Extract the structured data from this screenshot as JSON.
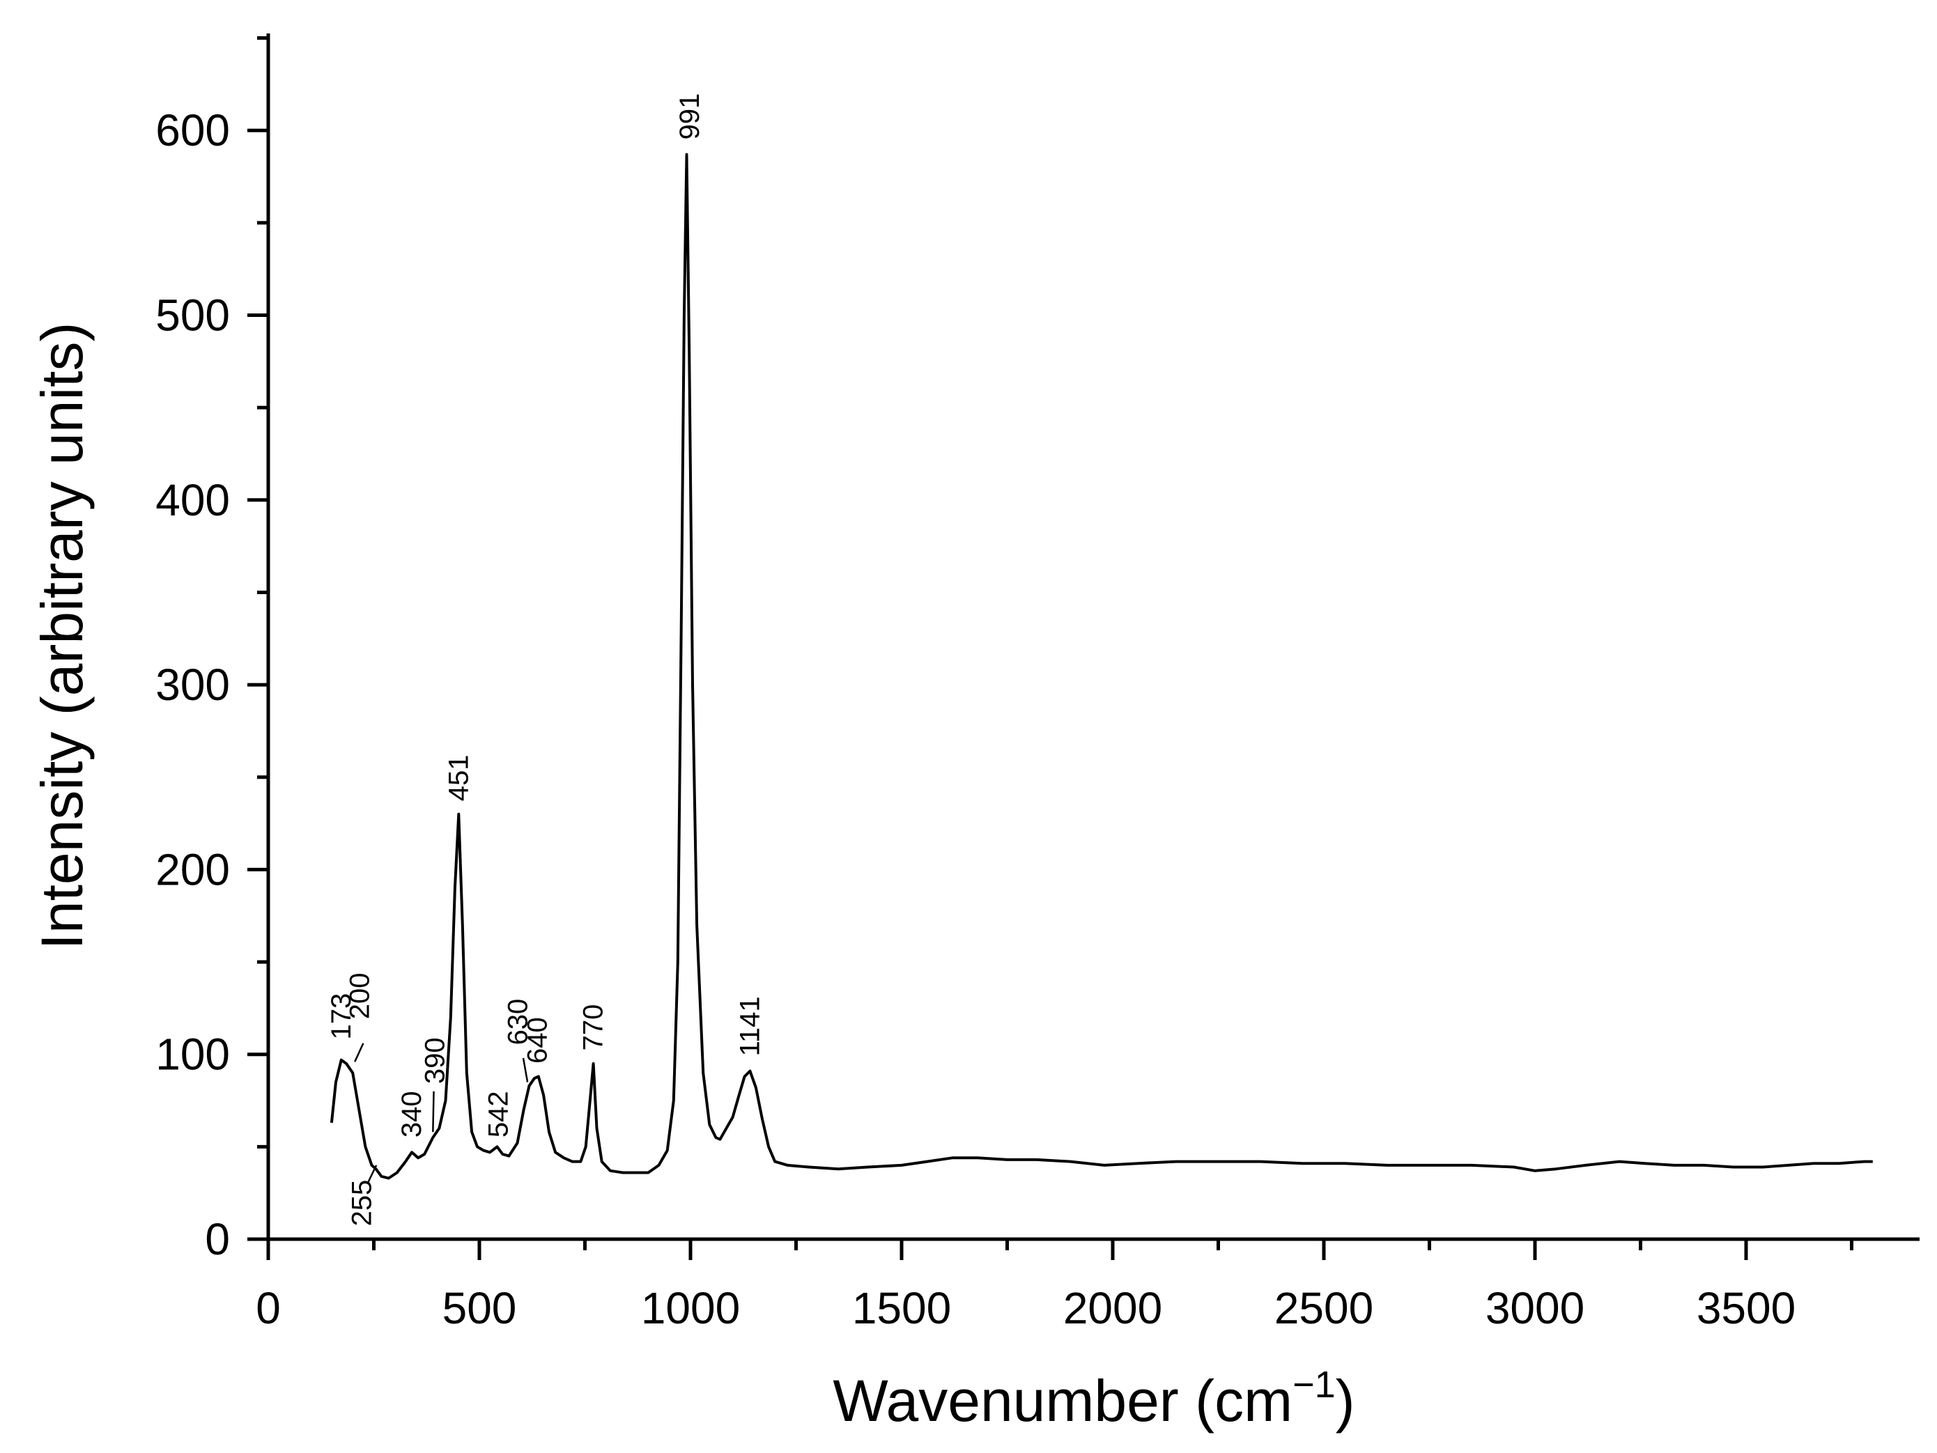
{
  "chart_data": {
    "type": "line",
    "title": "",
    "xlabel": "Wavenumber (cm",
    "xlabel_sup": "−1",
    "xlabel_close": ")",
    "ylabel": "Intensity (arbitrary units)",
    "xlim": [
      0,
      3900
    ],
    "ylim": [
      0,
      650
    ],
    "x_major_ticks": [
      0,
      500,
      1000,
      1500,
      2000,
      2500,
      3000,
      3500
    ],
    "x_minor_step": 250,
    "y_major_ticks": [
      0,
      100,
      200,
      300,
      400,
      500,
      600
    ],
    "y_minor_step": 50,
    "grid": false,
    "legend": "none",
    "line_color": "#000000",
    "series": [
      {
        "x": [
          150,
          160,
          173,
          185,
          200,
          215,
          230,
          245,
          255,
          268,
          285,
          305,
          325,
          340,
          355,
          370,
          390,
          405,
          420,
          432,
          442,
          451,
          460,
          470,
          482,
          495,
          510,
          525,
          542,
          555,
          570,
          590,
          605,
          618,
          630,
          640,
          652,
          665,
          680,
          700,
          720,
          740,
          752,
          762,
          770,
          778,
          790,
          810,
          840,
          870,
          900,
          925,
          945,
          960,
          970,
          978,
          985,
          991,
          997,
          1005,
          1015,
          1030,
          1045,
          1060,
          1070,
          1085,
          1100,
          1115,
          1128,
          1141,
          1155,
          1170,
          1185,
          1200,
          1230,
          1280,
          1350,
          1420,
          1500,
          1560,
          1620,
          1680,
          1750,
          1820,
          1900,
          1980,
          2060,
          2150,
          2250,
          2350,
          2450,
          2550,
          2650,
          2750,
          2850,
          2950,
          3000,
          3050,
          3120,
          3200,
          3260,
          3330,
          3400,
          3470,
          3540,
          3600,
          3660,
          3720,
          3780,
          3800
        ],
        "y": [
          63,
          85,
          97,
          95,
          90,
          70,
          50,
          40,
          38,
          34,
          33,
          36,
          42,
          47,
          44,
          46,
          55,
          60,
          75,
          120,
          190,
          230,
          170,
          90,
          58,
          50,
          48,
          47,
          50,
          46,
          45,
          52,
          70,
          83,
          87,
          88,
          78,
          58,
          47,
          44,
          42,
          42,
          50,
          75,
          95,
          60,
          42,
          37,
          36,
          36,
          36,
          40,
          48,
          75,
          150,
          330,
          500,
          587,
          480,
          300,
          170,
          90,
          62,
          55,
          54,
          60,
          66,
          78,
          88,
          91,
          82,
          65,
          50,
          42,
          40,
          39,
          38,
          39,
          40,
          42,
          44,
          44,
          43,
          43,
          42,
          40,
          41,
          42,
          42,
          42,
          41,
          41,
          40,
          40,
          40,
          39,
          37,
          38,
          40,
          42,
          41,
          40,
          40,
          39,
          39,
          40,
          41,
          41,
          42,
          42
        ]
      }
    ],
    "peak_labels": [
      "173",
      "200",
      "255",
      "340",
      "390",
      "451",
      "542",
      "630",
      "640",
      "770",
      "991",
      "1141"
    ]
  }
}
